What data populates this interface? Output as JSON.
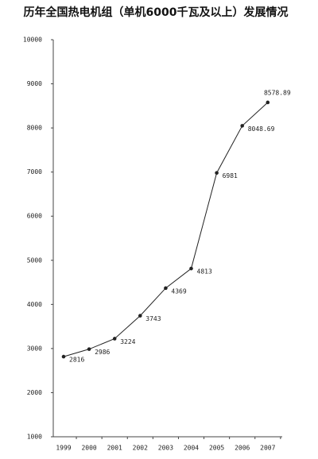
{
  "chart_data": {
    "type": "line",
    "title": "历年全国热电机组（单机6000千瓦及以上）发展情况",
    "categories": [
      "1999",
      "2000",
      "2001",
      "2002",
      "2003",
      "2004",
      "2005",
      "2006",
      "2007"
    ],
    "values": [
      2816,
      2986,
      3224,
      3743,
      4369,
      4813,
      6981,
      8048.69,
      8578.89
    ],
    "color": "#222222",
    "ylim": [
      1000,
      10000
    ],
    "yticks": [
      1000,
      2000,
      3000,
      4000,
      5000,
      6000,
      7000,
      8000,
      9000,
      10000
    ],
    "grid": false
  }
}
